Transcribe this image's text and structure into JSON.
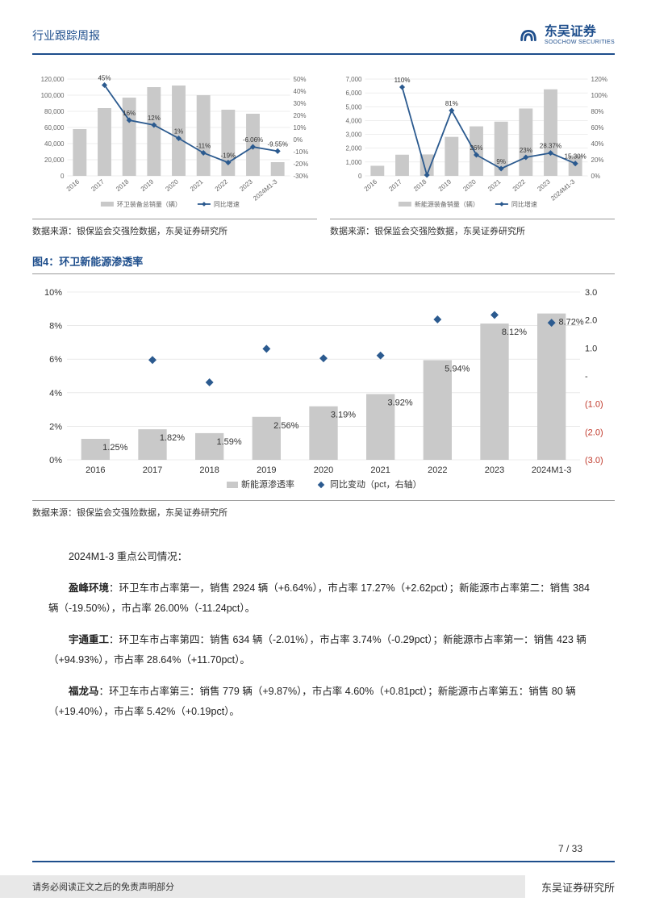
{
  "header": {
    "title": "行业跟踪周报",
    "logo_cn": "东吴证券",
    "logo_en": "SOOCHOW SECURITIES"
  },
  "chart1": {
    "type": "bar+line",
    "categories": [
      "2016",
      "2017",
      "2018",
      "2019",
      "2020",
      "2021",
      "2022",
      "2023",
      "2024M1-3"
    ],
    "bars": [
      58000,
      84000,
      97000,
      110000,
      112000,
      100000,
      82000,
      77000,
      17000
    ],
    "line": [
      null,
      45,
      16,
      12,
      1,
      -11,
      -19,
      -6.06,
      -9.55
    ],
    "line_labels": [
      "",
      "45%",
      "16%",
      "12%",
      "1%",
      "-11%",
      "-19%",
      "-6.06%",
      "-9.55%"
    ],
    "y1_ticks": [
      "0",
      "20,000",
      "40,000",
      "60,000",
      "80,000",
      "100,000",
      "120,000"
    ],
    "y1_max": 120000,
    "y2_ticks": [
      "-30%",
      "-20%",
      "-10%",
      "0%",
      "10%",
      "20%",
      "30%",
      "40%",
      "50%"
    ],
    "y2_min": -30,
    "y2_max": 50,
    "legend": [
      "环卫装备总销量（辆）",
      "同比增速"
    ],
    "bar_color": "#c9c9c9",
    "line_color": "#2b5a8f",
    "grid_color": "#dcdcdc",
    "text_color": "#666",
    "fontsize": 8
  },
  "chart2": {
    "type": "bar+line",
    "categories": [
      "2016",
      "2017",
      "2018",
      "2019",
      "2020",
      "2021",
      "2022",
      "2023",
      "2024M1-3"
    ],
    "bars": [
      730,
      1530,
      1550,
      2820,
      3580,
      3920,
      4870,
      6260,
      1480
    ],
    "line": [
      null,
      110,
      1,
      81,
      26,
      9,
      23,
      28.37,
      15.3
    ],
    "line_labels": [
      "",
      "110%",
      "",
      "81%",
      "26%",
      "9%",
      "23%",
      "28.37%",
      "15.30%"
    ],
    "y1_ticks": [
      "0",
      "1,000",
      "2,000",
      "3,000",
      "4,000",
      "5,000",
      "6,000",
      "7,000"
    ],
    "y1_max": 7000,
    "y2_ticks": [
      "0%",
      "20%",
      "40%",
      "60%",
      "80%",
      "100%",
      "120%"
    ],
    "y2_min": 0,
    "y2_max": 120,
    "legend": [
      "新能源装备销量（辆）",
      "同比增速"
    ],
    "bar_color": "#c9c9c9",
    "line_color": "#2b5a8f",
    "grid_color": "#dcdcdc",
    "text_color": "#666",
    "fontsize": 8
  },
  "source1": "数据来源：银保监会交强险数据，东吴证券研究所",
  "source2": "数据来源：银保监会交强险数据，东吴证券研究所",
  "fig4_title": "图4：环卫新能源渗透率",
  "chart3": {
    "type": "bar+scatter",
    "categories": [
      "2016",
      "2017",
      "2018",
      "2019",
      "2020",
      "2021",
      "2022",
      "2023",
      "2024M1-3"
    ],
    "bars": [
      1.25,
      1.82,
      1.59,
      2.56,
      3.19,
      3.92,
      5.94,
      8.12,
      8.72
    ],
    "bar_labels": [
      "1.25%",
      "1.82%",
      "1.59%",
      "2.56%",
      "3.19%",
      "3.92%",
      "5.94%",
      "8.12%",
      "8.72%"
    ],
    "points": [
      null,
      0.57,
      -0.23,
      0.97,
      0.63,
      0.73,
      2.02,
      2.18,
      1.9
    ],
    "y1_ticks": [
      "0%",
      "2%",
      "4%",
      "6%",
      "8%",
      "10%"
    ],
    "y1_max": 10,
    "y2_ticks": [
      "(3.0)",
      "(2.0)",
      "(1.0)",
      "-",
      "1.0",
      "2.0",
      "3.0"
    ],
    "y2_neg_ticks": [
      "(3.0)",
      "(2.0)",
      "(1.0)"
    ],
    "y2_min": -3,
    "y2_max": 3,
    "legend": [
      "新能源渗透率",
      "同比变动（pct，右轴）"
    ],
    "bar_color": "#c9c9c9",
    "point_color": "#2b5a8f",
    "grid_color": "#dcdcdc",
    "text_color": "#333",
    "neg_color": "#c0392b",
    "fontsize": 11
  },
  "source3": "数据来源：银保监会交强险数据，东吴证券研究所",
  "body": {
    "intro": "2024M1-3 重点公司情况：",
    "p1": {
      "name": "盈峰环境",
      "text": "：环卫车市占率第一，销售 2924 辆（+6.64%），市占率 17.27%（+2.62pct）；新能源市占率第二：销售 384 辆（-19.50%），市占率 26.00%（-11.24pct）。"
    },
    "p2": {
      "name": "宇通重工",
      "text": "：环卫车市占率第四：销售 634 辆（-2.01%），市占率 3.74%（-0.29pct）；新能源市占率第一：销售 423 辆（+94.93%），市占率 28.64%（+11.70pct）。"
    },
    "p3": {
      "name": "福龙马",
      "text": "：环卫车市占率第三：销售 779 辆（+9.87%），市占率 4.60%（+0.81pct）；新能源市占率第五：销售 80 辆（+19.40%），市占率 5.42%（+0.19pct）。"
    }
  },
  "footer": {
    "page": "7 / 33",
    "disclaimer": "请务必阅读正文之后的免责声明部分",
    "inst": "东吴证券研究所"
  }
}
